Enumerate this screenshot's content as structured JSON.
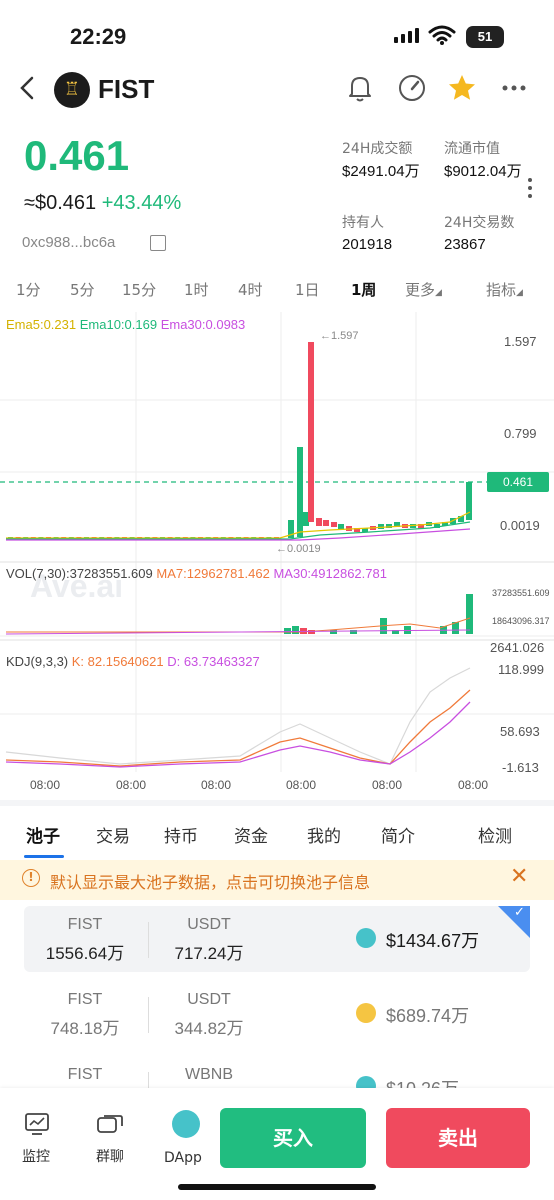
{
  "status_bar": {
    "time": "22:29",
    "battery": "51"
  },
  "header": {
    "back_icon": "chevron-left-icon",
    "coin_symbol": "FIST",
    "logo_glyph": "♖"
  },
  "price": {
    "current": "0.461",
    "usd_approx": "≈$0.461",
    "change_pct": "+43.44%",
    "contract": "0xc988...bc6a"
  },
  "stats": [
    {
      "label": "24H成交额",
      "value": "$2491.04万"
    },
    {
      "label": "流通市值",
      "value": "$9012.04万"
    },
    {
      "label": "持有人",
      "value": "201918"
    },
    {
      "label": "24H交易数",
      "value": "23867"
    }
  ],
  "timeframes": [
    "1分",
    "5分",
    "15分",
    "1时",
    "4时",
    "1日",
    "1周",
    "更多",
    "指标"
  ],
  "active_timeframe": "1周",
  "chart_data": {
    "type": "candlestick",
    "main": {
      "legend": {
        "ema5": "Ema5:0.231",
        "ema10": "Ema10:0.169",
        "ema30": "Ema30:0.0983"
      },
      "y_ticks": [
        "1.597",
        "0.799",
        "0.0019"
      ],
      "current_price_label": "0.461",
      "max_annotation": "←1.597",
      "min_annotation": "←0.0019",
      "ylim": [
        0.0019,
        1.597
      ]
    },
    "volume": {
      "legend": {
        "vol": "VOL(7,30):37283551.609",
        "ma7": "MA7:12962781.462",
        "ma30": "MA30:4912862.781"
      },
      "y_ticks": [
        "37283551.609",
        "18643096.317",
        "2641.026"
      ]
    },
    "kdj": {
      "legend": {
        "kdj": "KDJ(9,3,3)",
        "k": "K: 82.15640621",
        "d": "D: 63.73463327"
      },
      "y_ticks": [
        "118.999",
        "58.693",
        "-1.613"
      ]
    },
    "x_labels": [
      "08:00",
      "08:00",
      "08:00",
      "08:00",
      "08:00",
      "08:00"
    ],
    "watermark": "Ave.ai"
  },
  "tabs": [
    "池子",
    "交易",
    "持币",
    "资金",
    "我的",
    "简介",
    "检测"
  ],
  "notice": {
    "text": "默认显示最大池子数据，点击可切换池子信息"
  },
  "pools": [
    {
      "token_a": "FIST",
      "amount_a": "1556.64万",
      "token_b": "USDT",
      "amount_b": "717.24万",
      "value": "$1434.67万",
      "selected": true
    },
    {
      "token_a": "FIST",
      "amount_a": "748.18万",
      "token_b": "USDT",
      "amount_b": "344.82万",
      "value": "$689.74万",
      "selected": false
    },
    {
      "token_a": "FIST",
      "amount_a": "",
      "token_b": "WBNB",
      "amount_b": "",
      "value": "$10.26万",
      "selected": false
    }
  ],
  "bottom_nav": {
    "monitor": "监控",
    "group": "群聊",
    "dapp": "DApp",
    "buy": "买入",
    "sell": "卖出"
  },
  "colors": {
    "up": "#1fb97a",
    "down": "#f04a5e",
    "accent": "#1c72e8"
  }
}
